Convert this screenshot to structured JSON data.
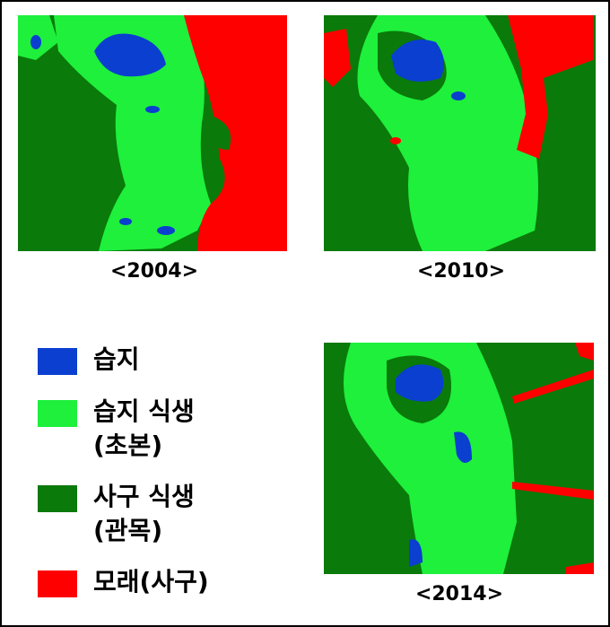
{
  "maps": [
    {
      "label": "<2004>"
    },
    {
      "label": "<2010>"
    },
    {
      "label": "<2014>"
    }
  ],
  "legend": [
    {
      "lines": [
        "습지"
      ],
      "color": "#0a3fd0"
    },
    {
      "lines": [
        "습지 식생",
        "(초본)"
      ],
      "color": "#1ef03c"
    },
    {
      "lines": [
        "사구 식생",
        "(관목)"
      ],
      "color": "#0a7a0a"
    },
    {
      "lines": [
        "모래(사구)"
      ],
      "color": "#ff0000"
    }
  ]
}
